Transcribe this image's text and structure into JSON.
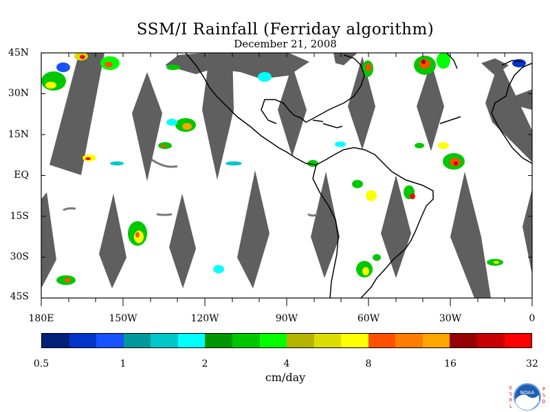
{
  "title": "SSM/I Rainfall (Ferriday algorithm)",
  "subtitle": "December 21, 2008",
  "lat_labels": [
    "45N",
    "30N",
    "15N",
    "EQ",
    "15S",
    "30S",
    "45S"
  ],
  "lon_labels": [
    "180E",
    "150W",
    "120W",
    "90W",
    "60W",
    "30W",
    "0"
  ],
  "colorbar": {
    "colors": [
      "#00207a",
      "#0035c8",
      "#1652ff",
      "#00999b",
      "#00c8c8",
      "#00ffff",
      "#009600",
      "#00c800",
      "#00ff00",
      "#b4b400",
      "#dcdc00",
      "#ffff00",
      "#ff5000",
      "#ff7d00",
      "#ffa500",
      "#960000",
      "#c80000",
      "#ff0000"
    ],
    "ticks": [
      "0.5",
      "1",
      "2",
      "4",
      "8",
      "16",
      "32"
    ],
    "units": "cm/day"
  },
  "logo": {
    "left_text": "ESRL",
    "right_text": "PSD",
    "badge": "NOAA"
  },
  "colors": {
    "swath_gap": "#5f5f5f",
    "coast": "#000000"
  }
}
